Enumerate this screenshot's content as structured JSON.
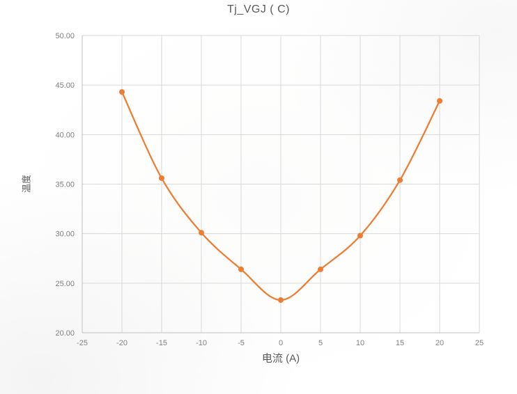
{
  "chart_data": {
    "type": "line",
    "title": "Tj_VGJ ( C)",
    "xlabel": "电流 (A)",
    "ylabel": "温度",
    "x": [
      -20,
      -15,
      -10,
      -5,
      0,
      5,
      10,
      15,
      20
    ],
    "series": [
      {
        "name": "Tj_VGJ",
        "values": [
          44.3,
          35.6,
          30.1,
          26.4,
          23.3,
          26.4,
          29.8,
          35.4,
          43.4
        ]
      }
    ],
    "xlim": [
      -25,
      25
    ],
    "ylim": [
      20,
      50
    ],
    "x_ticks": [
      -25,
      -20,
      -15,
      -10,
      -5,
      0,
      5,
      10,
      15,
      20,
      25
    ],
    "y_ticks": [
      20,
      25,
      30,
      35,
      40,
      45,
      50
    ],
    "y_tick_decimals": 2,
    "grid": true,
    "legend_position": "none",
    "marker": "circle",
    "colors": {
      "series": "#ED7D31",
      "gridline": "#D9D9D9",
      "axis_line": "#BFBFBF",
      "tick_text": "#7F7F7F",
      "title_text": "#595959",
      "background": "#FFFFFF"
    }
  }
}
